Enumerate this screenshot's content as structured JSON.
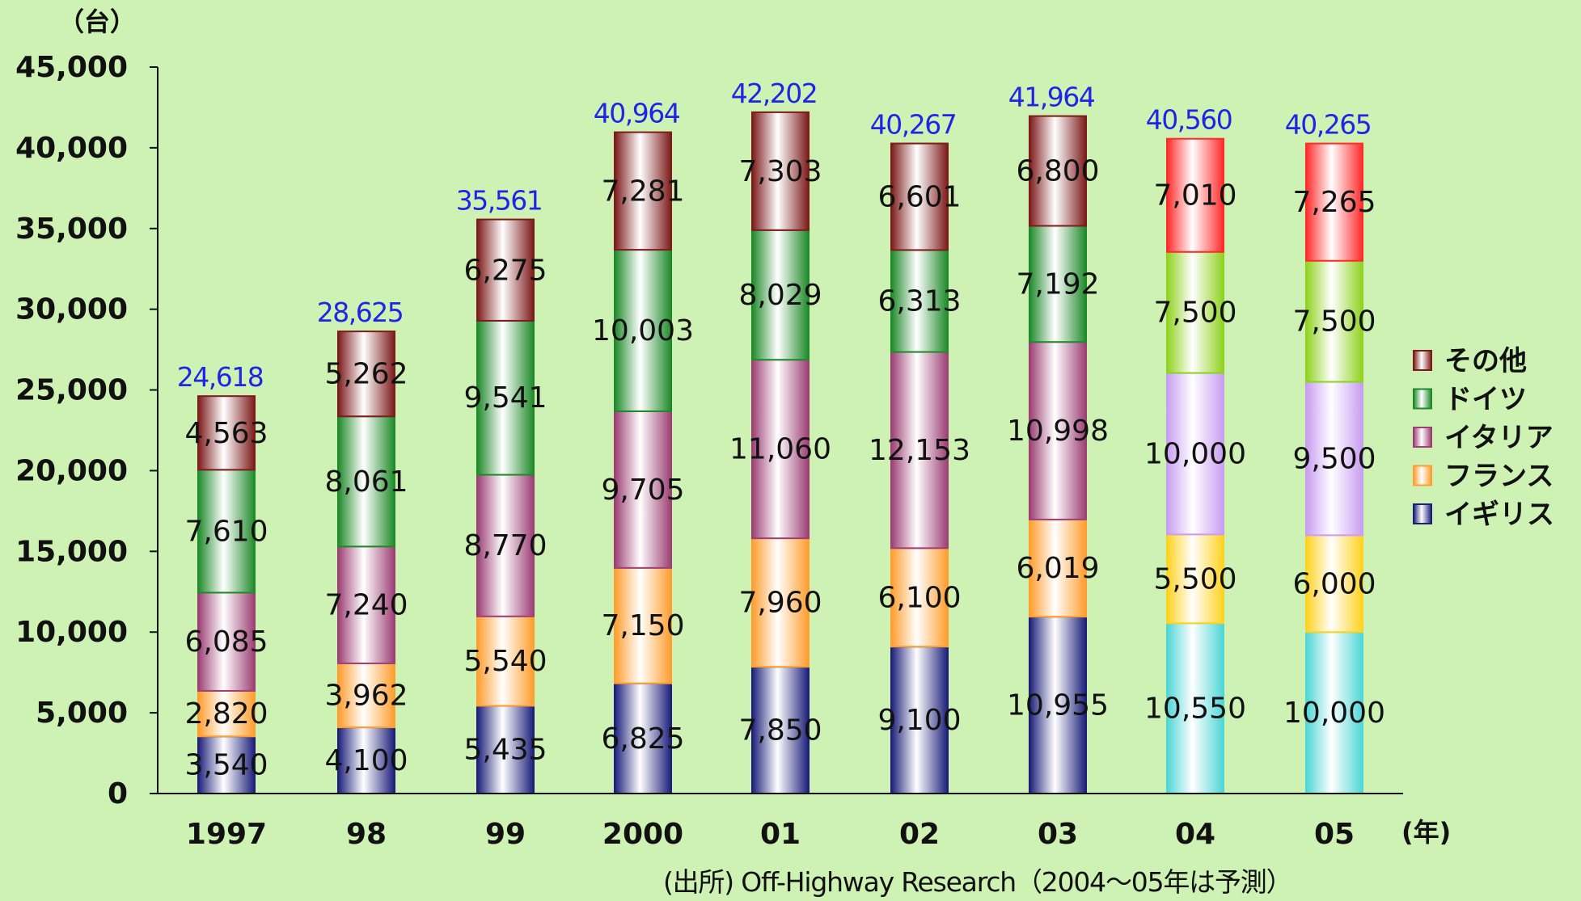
{
  "chart_data": {
    "type": "bar",
    "stacked": true,
    "y_unit": "（台）",
    "x_unit": "(年)",
    "source": "(出所) Off-Highway Research（2004～05年は予測）",
    "ylim": [
      0,
      45000
    ],
    "y_ticks": [
      "0",
      "5,000",
      "10,000",
      "15,000",
      "20,000",
      "25,000",
      "30,000",
      "35,000",
      "40,000",
      "45,000"
    ],
    "categories": [
      "1997",
      "98",
      "99",
      "2000",
      "01",
      "02",
      "03",
      "04",
      "05"
    ],
    "totals": [
      24618,
      28625,
      35561,
      40964,
      42202,
      40267,
      41964,
      40560,
      40265
    ],
    "total_labels": [
      "24,618",
      "28,625",
      "35,561",
      "40,964",
      "42,202",
      "40,267",
      "41,964",
      "40,560",
      "40,265"
    ],
    "forecast_from_index": 7,
    "series": [
      {
        "name": "イギリス",
        "values": [
          3540,
          4100,
          5435,
          6825,
          7850,
          9100,
          10955,
          10550,
          10000
        ],
        "labels": [
          "3,540",
          "4,100",
          "5,435",
          "6,825",
          "7,850",
          "9,100",
          "10,955",
          "10,550",
          "10,000"
        ],
        "color": "#1c1f7a",
        "forecast_color": "#4fd6d6"
      },
      {
        "name": "フランス",
        "values": [
          2820,
          3962,
          5540,
          7150,
          7960,
          6100,
          6019,
          5500,
          6000
        ],
        "labels": [
          "2,820",
          "3,962",
          "5,540",
          "7,150",
          "7,960",
          "6,100",
          "6,019",
          "5,500",
          "6,000"
        ],
        "color": "#ff9d2e",
        "forecast_color": "#ffd21f"
      },
      {
        "name": "イタリア",
        "values": [
          6085,
          7240,
          8770,
          9705,
          11060,
          12153,
          10998,
          10000,
          9500
        ],
        "labels": [
          "6,085",
          "7,240",
          "8,770",
          "9,705",
          "11,060",
          "12,153",
          "10,998",
          "10,000",
          "9,500"
        ],
        "color": "#9c3f74",
        "forecast_color": "#c99df2"
      },
      {
        "name": "ドイツ",
        "values": [
          7610,
          8061,
          9541,
          10003,
          8029,
          6313,
          7192,
          7500,
          7500
        ],
        "labels": [
          "7,610",
          "8,061",
          "9,541",
          "10,003",
          "8,029",
          "6,313",
          "7,192",
          "7,500",
          "7,500"
        ],
        "color": "#1f8a2a",
        "forecast_color": "#8fd21f"
      },
      {
        "name": "その他",
        "values": [
          4563,
          5262,
          6275,
          7281,
          7303,
          6601,
          6800,
          7010,
          7265
        ],
        "labels": [
          "4,563",
          "5,262",
          "6,275",
          "7,281",
          "7,303",
          "6,601",
          "6,800",
          "7,010",
          "7,265"
        ],
        "color": "#7d1a1a",
        "forecast_color": "#ff2a2a"
      }
    ],
    "legend_order": [
      "その他",
      "ドイツ",
      "イタリア",
      "フランス",
      "イギリス"
    ],
    "legend_position": "right",
    "total_label_color": "#2323e6",
    "background": "#cef2b4"
  }
}
